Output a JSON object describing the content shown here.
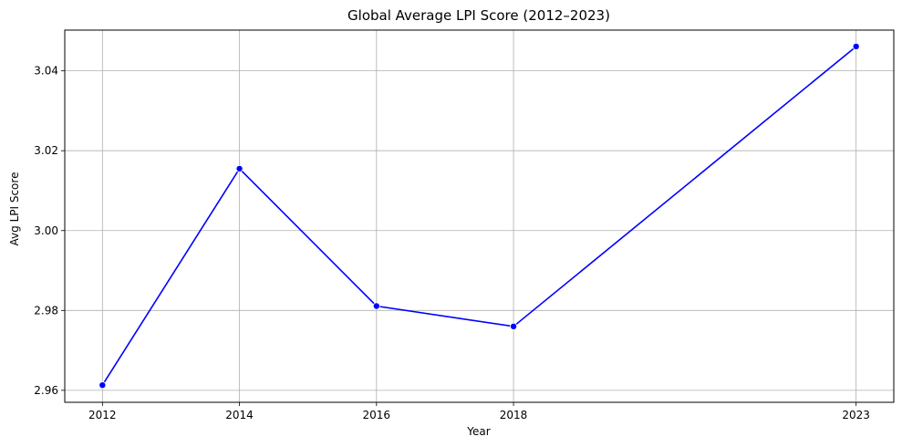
{
  "chart_data": {
    "type": "line",
    "title": "Global Average LPI Score (2012–2023)",
    "xlabel": "Year",
    "ylabel": "Avg LPI Score",
    "x": [
      2012,
      2014,
      2016,
      2018,
      2023
    ],
    "x_tick_labels": [
      "2012",
      "2014",
      "2016",
      "2018",
      "2023"
    ],
    "y_ticks": [
      2.96,
      2.98,
      3.0,
      3.02,
      3.04
    ],
    "y_tick_labels": [
      "2.96",
      "2.98",
      "3.00",
      "3.02",
      "3.04"
    ],
    "xlim": [
      2011.45,
      2023.55
    ],
    "ylim": [
      2.957,
      3.0502
    ],
    "grid": true,
    "line_color": "#0000ff",
    "series": [
      {
        "values": [
          2.9613,
          3.0155,
          2.9811,
          2.976,
          3.0461
        ]
      }
    ]
  }
}
